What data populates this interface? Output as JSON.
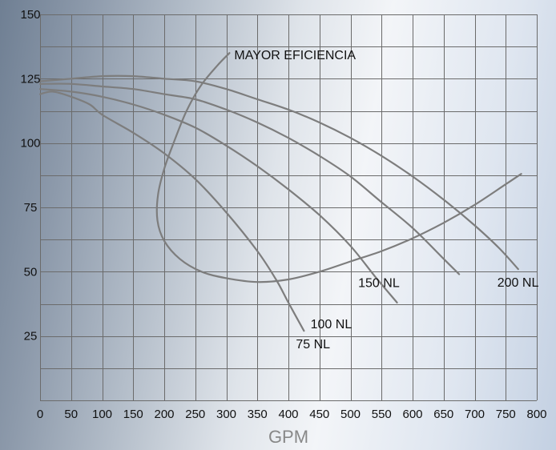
{
  "chart_data": {
    "type": "line",
    "xlabel": "GPM",
    "ylabel": "",
    "xlim": [
      0,
      800
    ],
    "ylim": [
      0,
      150
    ],
    "x_ticks": [
      0,
      50,
      100,
      150,
      200,
      250,
      300,
      350,
      400,
      450,
      500,
      550,
      600,
      650,
      700,
      750,
      800
    ],
    "y_ticks": [
      25,
      50,
      75,
      100,
      125,
      150
    ],
    "grid": true,
    "series": [
      {
        "name": "75 NL",
        "points": [
          [
            0,
            119
          ],
          [
            20,
            120
          ],
          [
            50,
            118
          ],
          [
            80,
            115
          ],
          [
            100,
            111
          ],
          [
            150,
            104
          ],
          [
            200,
            96
          ],
          [
            250,
            86
          ],
          [
            300,
            73
          ],
          [
            350,
            58
          ],
          [
            380,
            47
          ],
          [
            400,
            38
          ],
          [
            425,
            27
          ]
        ]
      },
      {
        "name": "100 NL",
        "points": [
          [
            0,
            121
          ],
          [
            50,
            120
          ],
          [
            100,
            118
          ],
          [
            150,
            115
          ],
          [
            200,
            111
          ],
          [
            250,
            106
          ],
          [
            300,
            99
          ],
          [
            350,
            91
          ],
          [
            400,
            82
          ],
          [
            450,
            72
          ],
          [
            500,
            60
          ],
          [
            540,
            48
          ],
          [
            575,
            38
          ]
        ]
      },
      {
        "name": "150 NL",
        "points": [
          [
            0,
            123
          ],
          [
            50,
            123
          ],
          [
            100,
            122
          ],
          [
            150,
            121
          ],
          [
            200,
            119
          ],
          [
            250,
            117
          ],
          [
            300,
            113
          ],
          [
            350,
            108
          ],
          [
            400,
            102
          ],
          [
            450,
            95
          ],
          [
            500,
            87
          ],
          [
            550,
            77
          ],
          [
            600,
            67
          ],
          [
            650,
            55
          ],
          [
            675,
            49
          ]
        ]
      },
      {
        "name": "200 NL",
        "points": [
          [
            0,
            124
          ],
          [
            50,
            125
          ],
          [
            100,
            126
          ],
          [
            150,
            126
          ],
          [
            200,
            125
          ],
          [
            250,
            124
          ],
          [
            300,
            121
          ],
          [
            350,
            117
          ],
          [
            400,
            113
          ],
          [
            450,
            108
          ],
          [
            500,
            102
          ],
          [
            550,
            95
          ],
          [
            600,
            87
          ],
          [
            650,
            78
          ],
          [
            700,
            68
          ],
          [
            740,
            59
          ],
          [
            770,
            51
          ]
        ]
      },
      {
        "name": "MAYOR EFICIENCIA",
        "points": [
          [
            305,
            135
          ],
          [
            285,
            130
          ],
          [
            258,
            122
          ],
          [
            235,
            112
          ],
          [
            215,
            100
          ],
          [
            200,
            90
          ],
          [
            190,
            80
          ],
          [
            189,
            70
          ],
          [
            200,
            62
          ],
          [
            225,
            55
          ],
          [
            260,
            50
          ],
          [
            300,
            47.5
          ],
          [
            350,
            46
          ],
          [
            400,
            47
          ],
          [
            450,
            50
          ],
          [
            500,
            54
          ],
          [
            550,
            58
          ],
          [
            600,
            63
          ],
          [
            650,
            69
          ],
          [
            700,
            76
          ],
          [
            750,
            84
          ],
          [
            775,
            88
          ]
        ]
      }
    ]
  }
}
